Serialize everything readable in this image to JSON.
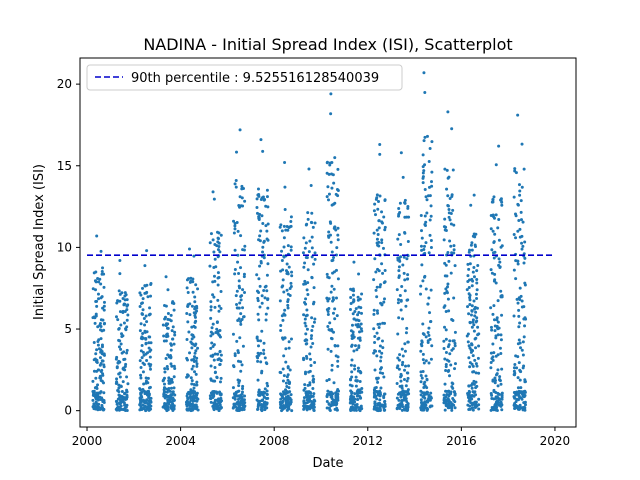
{
  "chart_data": {
    "type": "scatter",
    "title": "NADINA - Initial Spread Index (ISI), Scatterplot",
    "xlabel": "Date",
    "ylabel": "Initial Spread Index (ISI)",
    "xlim": [
      1999.7,
      2020.9
    ],
    "ylim": [
      -1.0,
      21.6
    ],
    "x_ticks": [
      {
        "value": 2000,
        "label": "2000"
      },
      {
        "value": 2004,
        "label": "2004"
      },
      {
        "value": 2008,
        "label": "2008"
      },
      {
        "value": 2012,
        "label": "2012"
      },
      {
        "value": 2016,
        "label": "2016"
      },
      {
        "value": 2020,
        "label": "2020"
      }
    ],
    "y_ticks": [
      {
        "value": 0,
        "label": "0"
      },
      {
        "value": 5,
        "label": "5"
      },
      {
        "value": 10,
        "label": "10"
      },
      {
        "value": 15,
        "label": "15"
      },
      {
        "value": 20,
        "label": "20"
      }
    ],
    "grid": false,
    "legend": {
      "position": "top-left",
      "entries": [
        "90th percentile : 9.525516128540039"
      ]
    },
    "reference_lines": [
      {
        "y": 9.525516128540039,
        "x_range": [
          2000.0,
          2020.0
        ],
        "style": "dashed",
        "color": "#0000cc",
        "label": "90th percentile : 9.525516128540039"
      }
    ],
    "series": [
      {
        "color": "#1f77b4",
        "marker_size": 2.2,
        "seasons": [
          {
            "year": 2000,
            "start": 2000.25,
            "end": 2000.75,
            "peak": 10.7,
            "n": 150
          },
          {
            "year": 2001,
            "start": 2001.25,
            "end": 2001.75,
            "peak": 9.2,
            "n": 140
          },
          {
            "year": 2002,
            "start": 2002.25,
            "end": 2002.75,
            "peak": 9.8,
            "n": 150
          },
          {
            "year": 2003,
            "start": 2003.25,
            "end": 2003.75,
            "peak": 8.2,
            "n": 140
          },
          {
            "year": 2004,
            "start": 2004.25,
            "end": 2004.75,
            "peak": 9.9,
            "n": 150
          },
          {
            "year": 2005,
            "start": 2005.25,
            "end": 2005.75,
            "peak": 13.4,
            "n": 150
          },
          {
            "year": 2006,
            "start": 2006.25,
            "end": 2006.75,
            "peak": 17.2,
            "n": 150
          },
          {
            "year": 2007,
            "start": 2007.25,
            "end": 2007.75,
            "peak": 16.6,
            "n": 150
          },
          {
            "year": 2008,
            "start": 2008.25,
            "end": 2008.75,
            "peak": 15.2,
            "n": 150
          },
          {
            "year": 2009,
            "start": 2009.25,
            "end": 2009.75,
            "peak": 14.8,
            "n": 150
          },
          {
            "year": 2010,
            "start": 2010.25,
            "end": 2010.75,
            "peak": 19.4,
            "n": 150
          },
          {
            "year": 2011,
            "start": 2011.25,
            "end": 2011.75,
            "peak": 9.1,
            "n": 140
          },
          {
            "year": 2012,
            "start": 2012.25,
            "end": 2012.75,
            "peak": 16.3,
            "n": 150
          },
          {
            "year": 2013,
            "start": 2013.25,
            "end": 2013.75,
            "peak": 15.8,
            "n": 150
          },
          {
            "year": 2014,
            "start": 2014.25,
            "end": 2014.75,
            "peak": 20.7,
            "n": 150
          },
          {
            "year": 2015,
            "start": 2015.25,
            "end": 2015.75,
            "peak": 18.3,
            "n": 150
          },
          {
            "year": 2016,
            "start": 2016.25,
            "end": 2016.75,
            "peak": 13.2,
            "n": 150
          },
          {
            "year": 2017,
            "start": 2017.25,
            "end": 2017.75,
            "peak": 16.2,
            "n": 150
          },
          {
            "year": 2018,
            "start": 2018.25,
            "end": 2018.75,
            "peak": 18.1,
            "n": 150
          }
        ]
      }
    ]
  }
}
